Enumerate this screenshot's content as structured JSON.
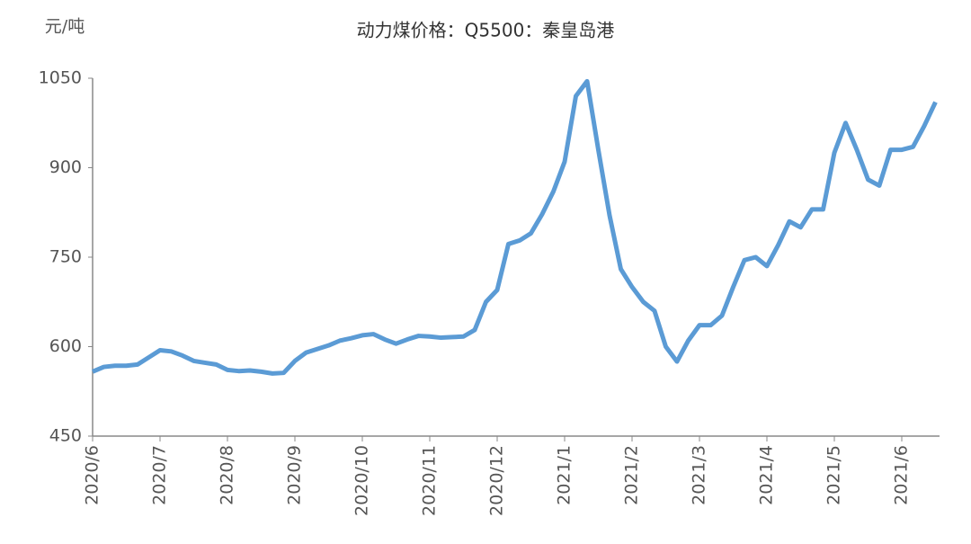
{
  "chart_data": {
    "type": "line",
    "title": "动力煤价格：Q5500：秦皇岛港",
    "y_label": "元/吨",
    "categories": [
      "2020/6",
      null,
      null,
      null,
      null,
      null,
      "2020/7",
      null,
      null,
      null,
      null,
      null,
      "2020/8",
      null,
      null,
      null,
      null,
      null,
      "2020/9",
      null,
      null,
      null,
      null,
      null,
      "2020/10",
      null,
      null,
      null,
      null,
      null,
      "2020/11",
      null,
      null,
      null,
      null,
      null,
      "2020/12",
      null,
      null,
      null,
      null,
      null,
      "2021/1",
      null,
      null,
      null,
      null,
      null,
      "2021/2",
      null,
      null,
      null,
      null,
      null,
      "2021/3",
      null,
      null,
      null,
      null,
      null,
      "2021/4",
      null,
      null,
      null,
      null,
      null,
      "2021/5",
      null,
      null,
      null,
      null,
      null,
      "2021/6",
      null,
      null,
      null
    ],
    "series": [
      {
        "name": "动力煤价格：Q5500：秦皇岛港",
        "color": "#5b9bd5",
        "values": [
          558,
          566,
          568,
          568,
          570,
          582,
          594,
          592,
          585,
          576,
          573,
          570,
          561,
          559,
          560,
          558,
          555,
          556,
          576,
          590,
          596,
          602,
          610,
          614,
          619,
          621,
          612,
          605,
          612,
          618,
          617,
          615,
          616,
          617,
          628,
          675,
          695,
          772,
          778,
          790,
          822,
          860,
          910,
          1020,
          1045,
          930,
          820,
          730,
          700,
          675,
          660,
          600,
          575,
          610,
          636,
          636,
          652,
          700,
          745,
          750,
          735,
          770,
          810,
          800,
          830,
          830,
          925,
          975,
          930,
          880,
          870,
          930,
          930,
          935,
          970,
          1010
        ]
      }
    ],
    "ylim": [
      450,
      1050
    ],
    "yticks": [
      450,
      600,
      750,
      900,
      1050
    ],
    "grid": false
  }
}
